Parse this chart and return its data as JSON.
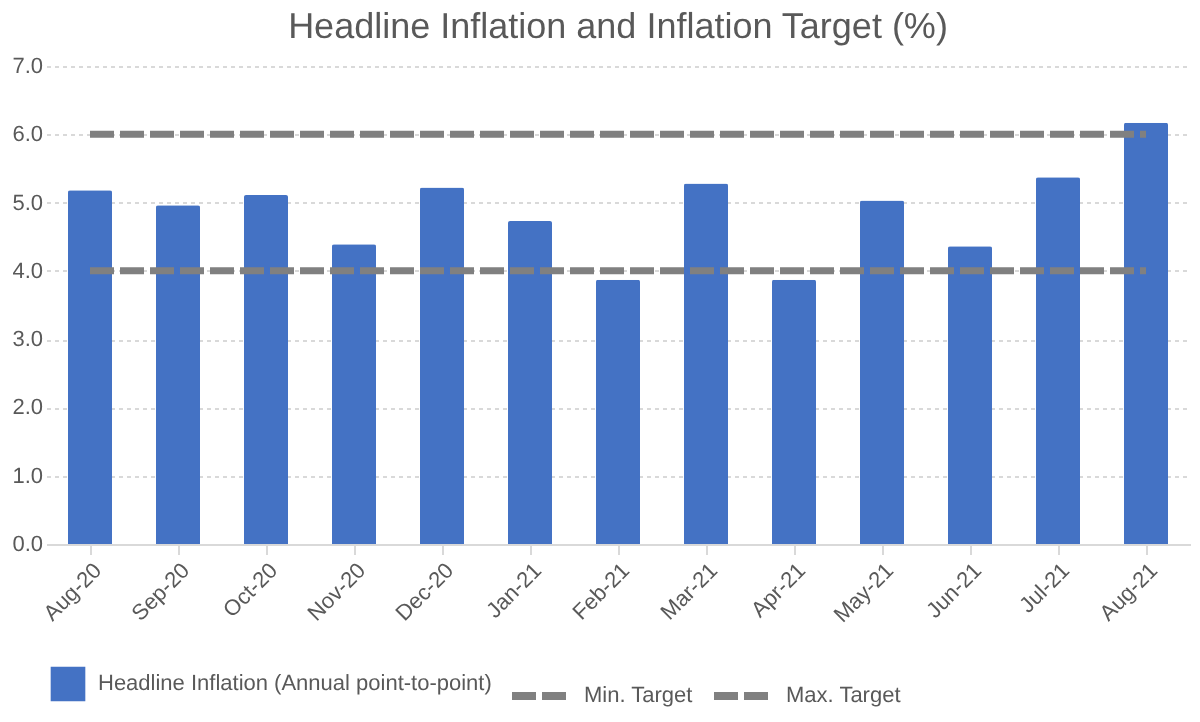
{
  "chart_data": {
    "type": "bar",
    "title": "Headline Inflation and Inflation Target (%)",
    "categories": [
      "Aug-20",
      "Sep-20",
      "Oct-20",
      "Nov-20",
      "Dec-20",
      "Jan-21",
      "Feb-21",
      "Mar-21",
      "Apr-21",
      "May-21",
      "Jun-21",
      "Jul-21",
      "Aug-21"
    ],
    "series": [
      {
        "name": "Headline Inflation (Annual point-to-point)",
        "color": "#4472c4",
        "values": [
          5.18,
          4.96,
          5.11,
          4.39,
          5.22,
          4.73,
          3.87,
          5.28,
          3.87,
          5.03,
          4.36,
          5.37,
          6.17
        ]
      },
      {
        "name": "Min. Target",
        "type": "line",
        "line_style": "dashed",
        "color": "#808080",
        "values": [
          4,
          4,
          4,
          4,
          4,
          4,
          4,
          4,
          4,
          4,
          4,
          4,
          4
        ]
      },
      {
        "name": "Max. Target",
        "type": "line",
        "line_style": "dashed",
        "color": "#808080",
        "values": [
          6,
          6,
          6,
          6,
          6,
          6,
          6,
          6,
          6,
          6,
          6,
          6,
          6
        ]
      }
    ],
    "ylim": [
      0,
      7
    ],
    "yticks": [
      {
        "value": 0,
        "label": "0.0"
      },
      {
        "value": 1,
        "label": "1.0"
      },
      {
        "value": 2,
        "label": "2.0"
      },
      {
        "value": 3,
        "label": "3.0"
      },
      {
        "value": 4,
        "label": "4.0"
      },
      {
        "value": 5,
        "label": "5.0"
      },
      {
        "value": 6,
        "label": "6.0"
      },
      {
        "value": 7,
        "label": "7.0"
      }
    ],
    "grid": "y",
    "legend": "bottom"
  }
}
